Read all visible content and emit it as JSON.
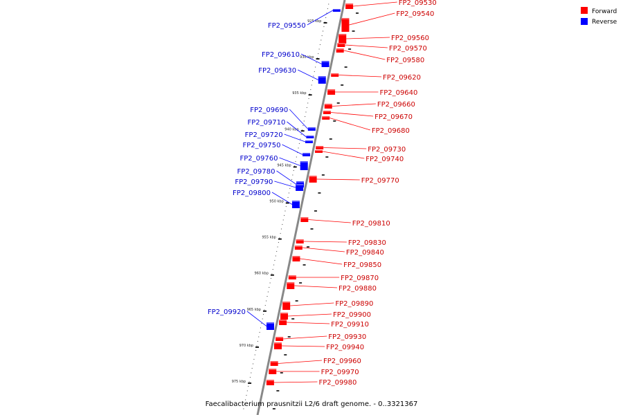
{
  "caption": "Faecalibacterium prausnitzii L2/6 draft genome. - 0..3321367",
  "legend": {
    "forward": {
      "label": "Forward",
      "color": "#ff0000"
    },
    "reverse": {
      "label": "Reverse",
      "color": "#0000ff"
    }
  },
  "colors": {
    "backbone": "#888888",
    "forward": "#ff0000",
    "reverse": "#0000ff",
    "forward_label": "#cc0000",
    "reverse_label": "#0000cc"
  },
  "ticks": [
    {
      "label": "925 kbp"
    },
    {
      "label": "930 kbp"
    },
    {
      "label": "935 kbp"
    },
    {
      "label": "940 kbp"
    },
    {
      "label": "945 kbp"
    },
    {
      "label": "950 kbp"
    },
    {
      "label": "955 kbp"
    },
    {
      "label": "960 kbp"
    },
    {
      "label": "965 kbp"
    },
    {
      "label": "970 kbp"
    },
    {
      "label": "975 kbp"
    }
  ],
  "genes": [
    {
      "name": "FP2_09530",
      "strand": "forward"
    },
    {
      "name": "FP2_09540",
      "strand": "forward"
    },
    {
      "name": "FP2_09550",
      "strand": "reverse"
    },
    {
      "name": "FP2_09560",
      "strand": "forward"
    },
    {
      "name": "FP2_09570",
      "strand": "forward"
    },
    {
      "name": "FP2_09580",
      "strand": "forward"
    },
    {
      "name": "FP2_09610",
      "strand": "reverse"
    },
    {
      "name": "FP2_09620",
      "strand": "forward"
    },
    {
      "name": "FP2_09630",
      "strand": "reverse"
    },
    {
      "name": "FP2_09640",
      "strand": "forward"
    },
    {
      "name": "FP2_09660",
      "strand": "forward"
    },
    {
      "name": "FP2_09670",
      "strand": "forward"
    },
    {
      "name": "FP2_09680",
      "strand": "forward"
    },
    {
      "name": "FP2_09690",
      "strand": "reverse"
    },
    {
      "name": "FP2_09710",
      "strand": "reverse"
    },
    {
      "name": "FP2_09720",
      "strand": "reverse"
    },
    {
      "name": "FP2_09730",
      "strand": "forward"
    },
    {
      "name": "FP2_09740",
      "strand": "forward"
    },
    {
      "name": "FP2_09750",
      "strand": "reverse"
    },
    {
      "name": "FP2_09760",
      "strand": "reverse"
    },
    {
      "name": "FP2_09770",
      "strand": "forward"
    },
    {
      "name": "FP2_09780",
      "strand": "reverse"
    },
    {
      "name": "FP2_09790",
      "strand": "reverse"
    },
    {
      "name": "FP2_09800",
      "strand": "reverse"
    },
    {
      "name": "FP2_09810",
      "strand": "forward"
    },
    {
      "name": "FP2_09830",
      "strand": "forward"
    },
    {
      "name": "FP2_09840",
      "strand": "forward"
    },
    {
      "name": "FP2_09850",
      "strand": "forward"
    },
    {
      "name": "FP2_09870",
      "strand": "forward"
    },
    {
      "name": "FP2_09880",
      "strand": "forward"
    },
    {
      "name": "FP2_09890",
      "strand": "forward"
    },
    {
      "name": "FP2_09900",
      "strand": "forward"
    },
    {
      "name": "FP2_09910",
      "strand": "forward"
    },
    {
      "name": "FP2_09920",
      "strand": "reverse"
    },
    {
      "name": "FP2_09930",
      "strand": "forward"
    },
    {
      "name": "FP2_09940",
      "strand": "forward"
    },
    {
      "name": "FP2_09960",
      "strand": "forward"
    },
    {
      "name": "FP2_09970",
      "strand": "forward"
    },
    {
      "name": "FP2_09980",
      "strand": "forward"
    }
  ]
}
